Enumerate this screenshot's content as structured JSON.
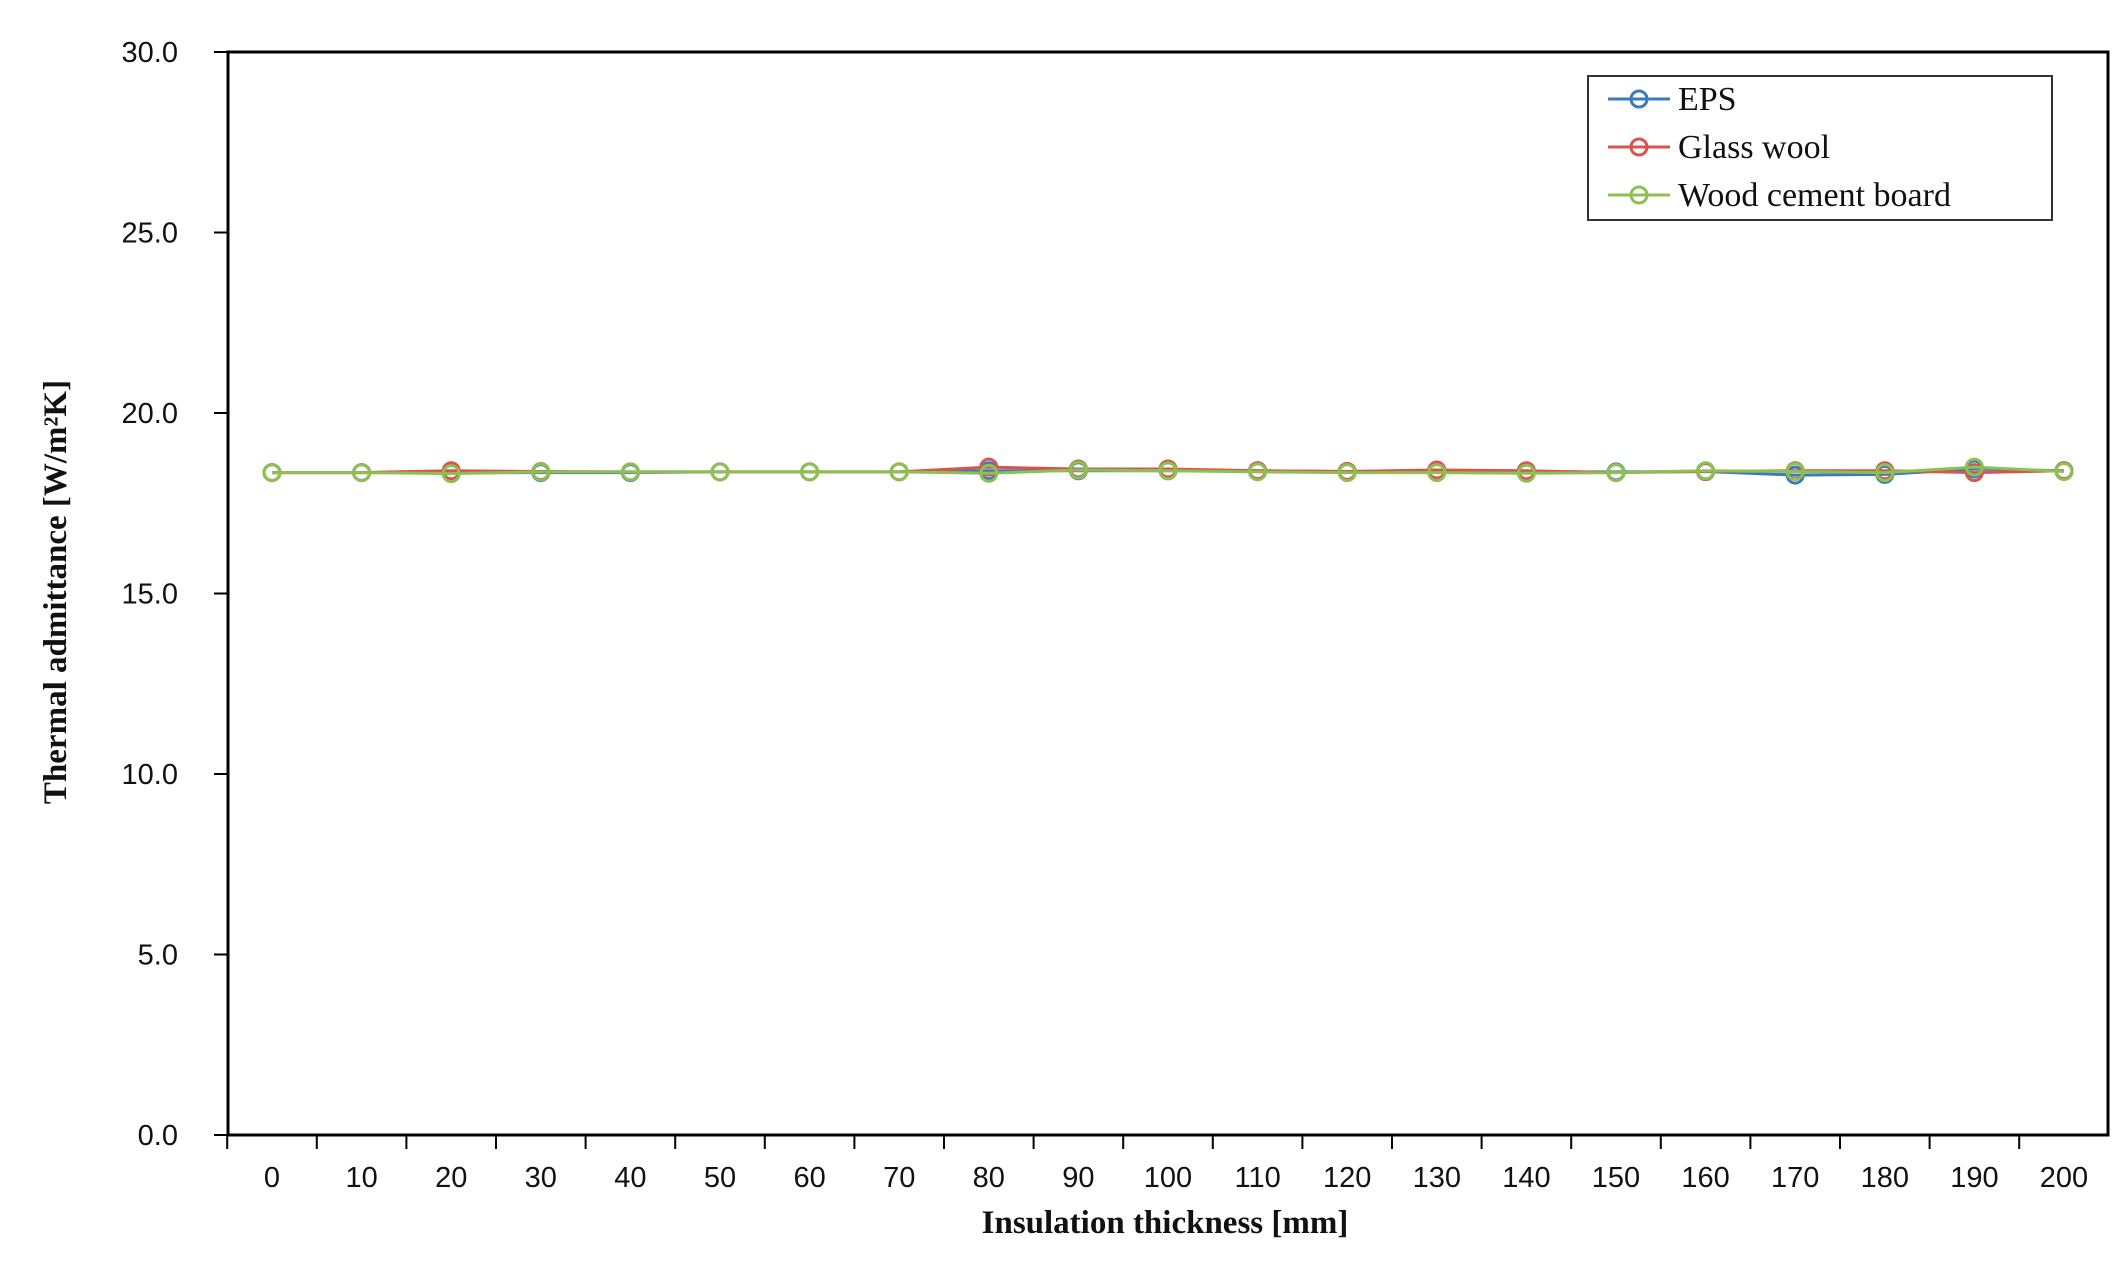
{
  "chart_data": {
    "type": "line",
    "title": "",
    "xlabel": "Insulation thickness [mm]",
    "ylabel": "Thermal admittance [W/m²K]",
    "x": [
      0,
      10,
      20,
      30,
      40,
      50,
      60,
      70,
      80,
      90,
      100,
      110,
      120,
      130,
      140,
      150,
      160,
      170,
      180,
      190,
      200
    ],
    "x_tick_labels": [
      "0",
      "10",
      "20",
      "30",
      "40",
      "50",
      "60",
      "70",
      "80",
      "90",
      "100",
      "110",
      "120",
      "130",
      "140",
      "150",
      "160",
      "170",
      "180",
      "190",
      "200"
    ],
    "ylim": [
      0,
      30
    ],
    "y_ticks": [
      0,
      5,
      10,
      15,
      20,
      25,
      30
    ],
    "y_tick_labels": [
      "0.0",
      "5.0",
      "10.0",
      "15.0",
      "20.0",
      "25.0",
      "30.0"
    ],
    "grid": false,
    "legend_position": "top-right",
    "series": [
      {
        "name": "EPS",
        "color": "#3a7bbf",
        "values": [
          18.35,
          18.35,
          18.35,
          18.35,
          18.35,
          18.37,
          18.37,
          18.37,
          18.4,
          18.4,
          18.4,
          18.4,
          18.38,
          18.4,
          18.37,
          18.37,
          18.38,
          18.28,
          18.3,
          18.45,
          18.4
        ]
      },
      {
        "name": "Glass wool",
        "color": "#d9534f",
        "values": [
          18.35,
          18.35,
          18.4,
          18.38,
          18.37,
          18.37,
          18.37,
          18.37,
          18.5,
          18.45,
          18.45,
          18.4,
          18.38,
          18.42,
          18.4,
          18.35,
          18.38,
          18.4,
          18.4,
          18.35,
          18.4
        ]
      },
      {
        "name": "Wood cement board",
        "color": "#8cc152",
        "values": [
          18.35,
          18.35,
          18.32,
          18.37,
          18.37,
          18.37,
          18.37,
          18.37,
          18.33,
          18.42,
          18.4,
          18.37,
          18.35,
          18.35,
          18.33,
          18.35,
          18.4,
          18.38,
          18.35,
          18.5,
          18.38
        ]
      }
    ]
  }
}
